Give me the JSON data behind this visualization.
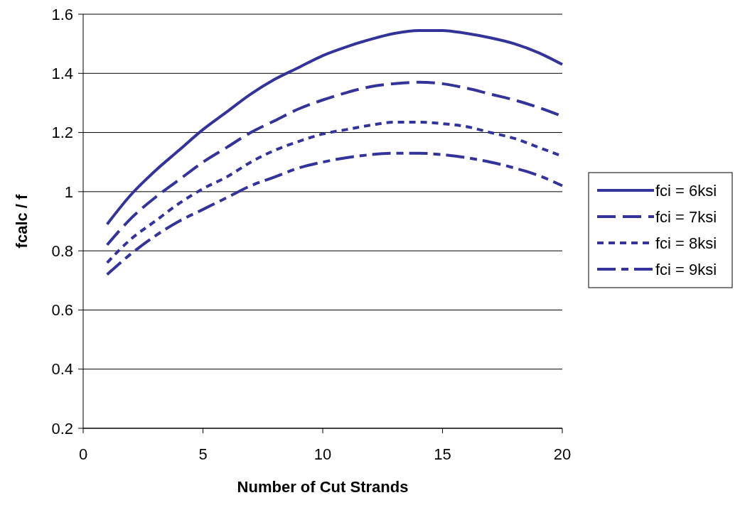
{
  "chart_data": {
    "type": "line",
    "xlabel": "Number of Cut Strands",
    "ylabel": "fcalc / f",
    "x": [
      1,
      2,
      3,
      4,
      5,
      6,
      7,
      8,
      9,
      10,
      11,
      12,
      13,
      14,
      15,
      16,
      17,
      18,
      19,
      20
    ],
    "series": [
      {
        "name": "fci = 6ksi",
        "color": "#333399",
        "line_style": "solid",
        "values": [
          0.89,
          0.99,
          1.07,
          1.14,
          1.21,
          1.27,
          1.33,
          1.38,
          1.42,
          1.46,
          1.49,
          1.515,
          1.535,
          1.545,
          1.545,
          1.535,
          1.52,
          1.5,
          1.47,
          1.43
        ]
      },
      {
        "name": "fci = 7ksi",
        "color": "#333399",
        "line_style": "dashed",
        "values": [
          0.82,
          0.91,
          0.98,
          1.04,
          1.1,
          1.15,
          1.2,
          1.24,
          1.28,
          1.31,
          1.335,
          1.355,
          1.365,
          1.37,
          1.365,
          1.35,
          1.33,
          1.31,
          1.285,
          1.255
        ]
      },
      {
        "name": "fci = 8ksi",
        "color": "#333399",
        "line_style": "dotted",
        "values": [
          0.76,
          0.84,
          0.9,
          0.96,
          1.01,
          1.05,
          1.1,
          1.14,
          1.17,
          1.195,
          1.21,
          1.225,
          1.235,
          1.235,
          1.23,
          1.22,
          1.2,
          1.18,
          1.15,
          1.12
        ]
      },
      {
        "name": "fci = 9ksi",
        "color": "#333399",
        "line_style": "dashdot",
        "values": [
          0.72,
          0.79,
          0.85,
          0.9,
          0.94,
          0.98,
          1.02,
          1.05,
          1.08,
          1.1,
          1.115,
          1.125,
          1.13,
          1.13,
          1.125,
          1.115,
          1.1,
          1.08,
          1.055,
          1.02
        ]
      }
    ],
    "xlim": [
      0,
      20
    ],
    "xticks": [
      0,
      5,
      10,
      15,
      20
    ],
    "ylim": [
      0.2,
      1.6
    ],
    "yticks": [
      0.2,
      0.4,
      0.6,
      0.8,
      1,
      1.2,
      1.4,
      1.6
    ],
    "grid": "y",
    "legend": "right",
    "marker": "none"
  }
}
